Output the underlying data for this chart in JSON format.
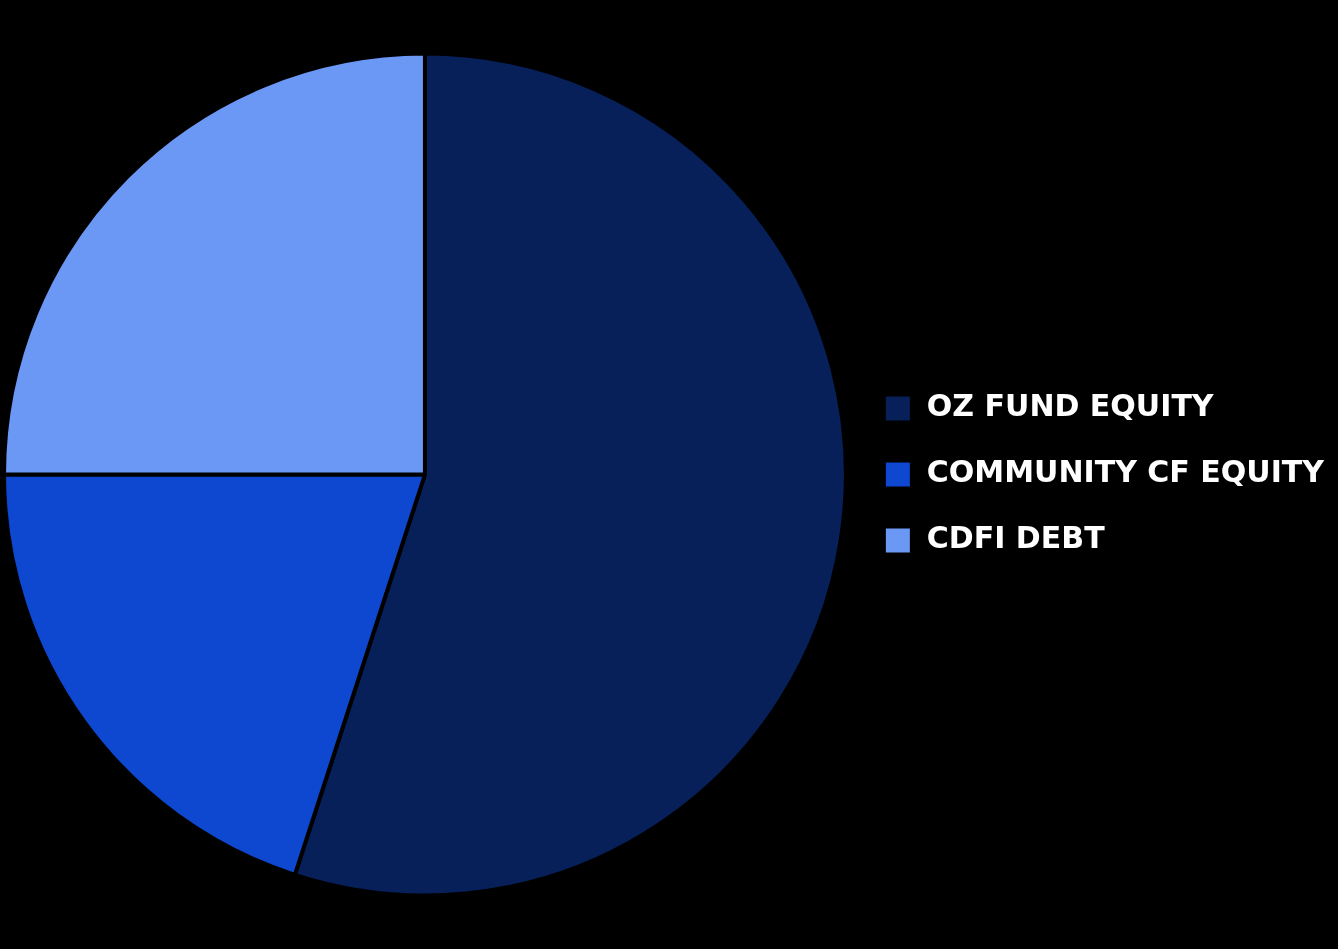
{
  "chart_data": {
    "type": "pie",
    "categories": [
      "OZ FUND EQUITY",
      "COMMUNITY CF EQUITY",
      "CDFI DEBT"
    ],
    "values": [
      55,
      20,
      25
    ],
    "colors": [
      "#07205a",
      "#0e47d0",
      "#6b97f5"
    ],
    "legend": "right"
  }
}
